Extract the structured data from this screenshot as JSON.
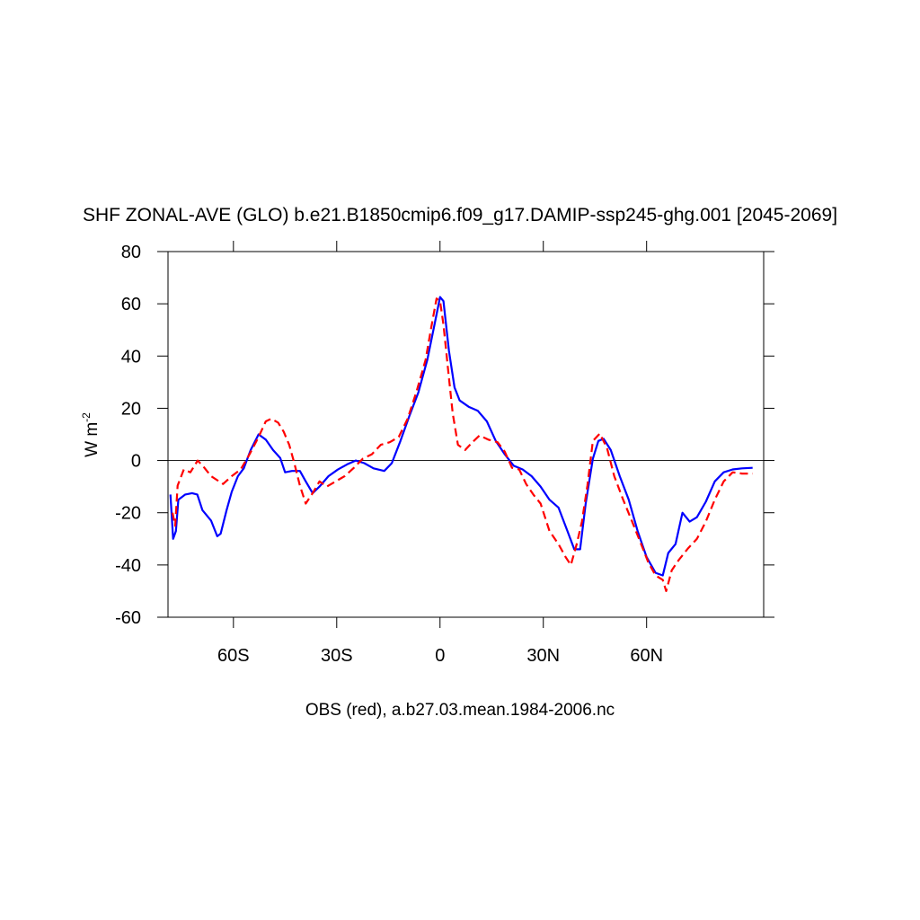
{
  "chart_data": {
    "type": "line",
    "title": "SHF ZONAL-AVE (GLO) b.e21.B1850cmip6.f09_g17.DAMIP-ssp245-ghg.001 [2045-2069]",
    "xlabel": "OBS (red), a.b27.03.mean.1984-2006.nc",
    "ylabel": "W m",
    "ylabel_exponent": "-2",
    "xlim": [
      -79,
      94
    ],
    "ylim": [
      -60,
      80
    ],
    "xticks": [
      {
        "value": -60,
        "label": "60S"
      },
      {
        "value": -30,
        "label": "30S"
      },
      0,
      {
        "value": 30,
        "label": "30N"
      },
      {
        "value": 60,
        "label": "60N"
      }
    ],
    "yticks": [
      -60,
      -40,
      -20,
      0,
      20,
      40,
      60,
      80
    ],
    "hline": 0,
    "series": [
      {
        "color": "#0000ff",
        "dash": false,
        "x": [
          -78.3,
          -77.5,
          -76.7,
          -76,
          -74,
          -72,
          -70.5,
          -69,
          -66.5,
          -64.7,
          -63.7,
          -62,
          -60.5,
          -58.7,
          -57,
          -55,
          -52.7,
          -50.6,
          -48.5,
          -46.4,
          -45,
          -43,
          -40.7,
          -39,
          -37,
          -35,
          -32.4,
          -29.7,
          -27,
          -24.5,
          -22,
          -19.3,
          -16.2,
          -14,
          -11.5,
          -8.9,
          -6.3,
          -3.7,
          -1.6,
          0,
          1,
          2.6,
          4.2,
          5.7,
          8.3,
          11,
          13.6,
          16.2,
          18.8,
          21.4,
          24,
          26.6,
          29.2,
          31.8,
          34.4,
          37,
          39,
          40.7,
          42.3,
          44.4,
          46,
          47.5,
          49.6,
          52.2,
          54.8,
          57.4,
          60,
          62.6,
          64.7,
          66.3,
          68.4,
          70.4,
          72.5,
          74.6,
          77.2,
          79.8,
          82.4,
          85,
          87.7,
          90.8
        ],
        "values": [
          -13,
          -30,
          -27,
          -15,
          -13,
          -12.5,
          -13,
          -19,
          -23,
          -29,
          -28,
          -19,
          -12,
          -6,
          -3,
          4,
          10,
          8,
          4,
          1,
          -4.5,
          -4,
          -4,
          -8,
          -12.5,
          -10,
          -6,
          -3.5,
          -1.5,
          0,
          -1,
          -3,
          -4,
          -1,
          7.5,
          17,
          26,
          38.5,
          52,
          62.6,
          61,
          42,
          28,
          23,
          20.6,
          19,
          15,
          7.5,
          2.4,
          -2,
          -3.4,
          -6,
          -10,
          -15,
          -18,
          -27,
          -34,
          -34,
          -16.5,
          0.7,
          7.5,
          8.3,
          4,
          -6,
          -15,
          -27,
          -37,
          -43,
          -44,
          -35.4,
          -32,
          -20,
          -23.4,
          -21.7,
          -15.8,
          -8,
          -4.5,
          -3.4,
          -3,
          -2.8
        ]
      },
      {
        "color": "#ff0000",
        "dash": true,
        "x": [
          -77.7,
          -76.9,
          -76.2,
          -74.4,
          -72.5,
          -70.4,
          -68.9,
          -66.5,
          -63,
          -60.5,
          -57.9,
          -55.3,
          -52.7,
          -50.6,
          -49,
          -47,
          -45.4,
          -43.8,
          -42.3,
          -40.7,
          -39,
          -37,
          -35,
          -32.9,
          -30.3,
          -27.7,
          -25,
          -22.4,
          -19.8,
          -17.2,
          -14.6,
          -12,
          -9.4,
          -6.8,
          -4.2,
          -2.6,
          -1,
          0,
          1,
          2.6,
          3.7,
          5.2,
          7.3,
          9.4,
          11.5,
          14,
          16.7,
          18.8,
          20.9,
          23,
          25,
          27.1,
          29.2,
          31.8,
          34.4,
          36.5,
          38,
          39.7,
          41.2,
          42.8,
          44.4,
          46.4,
          48.5,
          50.6,
          53.2,
          55.8,
          58.4,
          60.5,
          62.6,
          64.7,
          65.7,
          67.3,
          69.4,
          72,
          74.6,
          77.2,
          79.8,
          82.4,
          85,
          87.7,
          90.8
        ],
        "values": [
          -20,
          -25,
          -9.6,
          -3.4,
          -4.5,
          0,
          -2,
          -6,
          -9,
          -6,
          -3.4,
          2.4,
          9,
          15,
          16,
          14.5,
          11,
          6,
          -1,
          -9.6,
          -16.5,
          -12.5,
          -8,
          -10,
          -8,
          -6,
          -2.8,
          0.7,
          2.4,
          6,
          7,
          9,
          16,
          26.5,
          38.5,
          50.6,
          62,
          61,
          52,
          31.6,
          18,
          6,
          4,
          7,
          9.6,
          8,
          7,
          3.4,
          -2.8,
          -3.4,
          -9,
          -13,
          -16.5,
          -27,
          -32,
          -37,
          -40,
          -32,
          -23.4,
          -9.6,
          7.5,
          10.3,
          4.8,
          -6,
          -15,
          -23.4,
          -32,
          -39,
          -44,
          -45.7,
          -50,
          -42,
          -38,
          -33.7,
          -30,
          -23.4,
          -15,
          -8,
          -4.5,
          -5,
          -5
        ]
      }
    ]
  }
}
